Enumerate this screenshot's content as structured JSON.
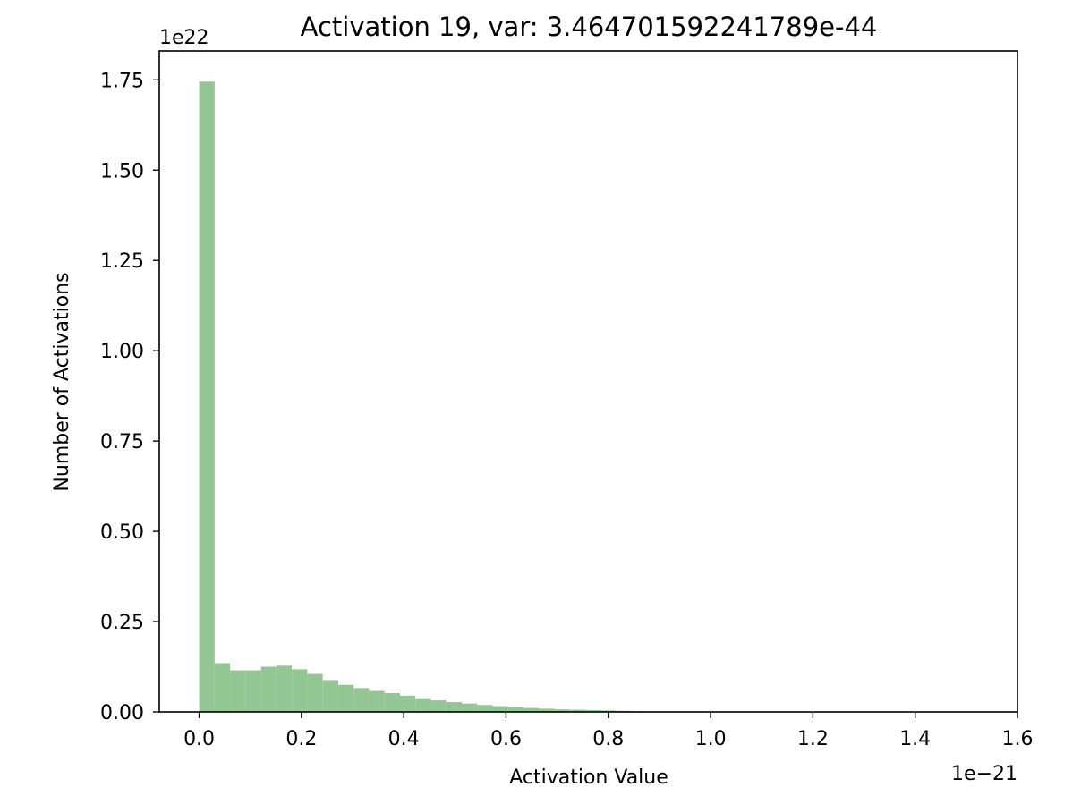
{
  "chart_data": {
    "type": "bar",
    "title": "Activation 19, var: 3.464701592241789e-44",
    "xlabel": "Activation Value",
    "ylabel": "Number of Activations",
    "x_offset_label": "1e−21",
    "y_offset_label": "1e22",
    "xlim": [
      -0.078,
      1.6
    ],
    "ylim": [
      0,
      1.83
    ],
    "x_ticks": [
      0.0,
      0.2,
      0.4,
      0.6,
      0.8,
      1.0,
      1.2,
      1.4,
      1.6
    ],
    "x_tick_labels": [
      "0.0",
      "0.2",
      "0.4",
      "0.6",
      "0.8",
      "1.0",
      "1.2",
      "1.4",
      "1.6"
    ],
    "y_ticks": [
      0.0,
      0.25,
      0.5,
      0.75,
      1.0,
      1.25,
      1.5,
      1.75
    ],
    "y_tick_labels": [
      "0.00",
      "0.25",
      "0.50",
      "0.75",
      "1.00",
      "1.25",
      "1.50",
      "1.75"
    ],
    "bar_color": "#94c694",
    "grid": false,
    "bins": {
      "start": 0.0,
      "width": 0.0302,
      "values": [
        1.745,
        0.135,
        0.115,
        0.115,
        0.125,
        0.128,
        0.118,
        0.105,
        0.088,
        0.075,
        0.066,
        0.058,
        0.052,
        0.045,
        0.038,
        0.032,
        0.027,
        0.023,
        0.019,
        0.016,
        0.013,
        0.011,
        0.009,
        0.007,
        0.006,
        0.005,
        0.004,
        0.003,
        0.002,
        0.001
      ]
    }
  }
}
